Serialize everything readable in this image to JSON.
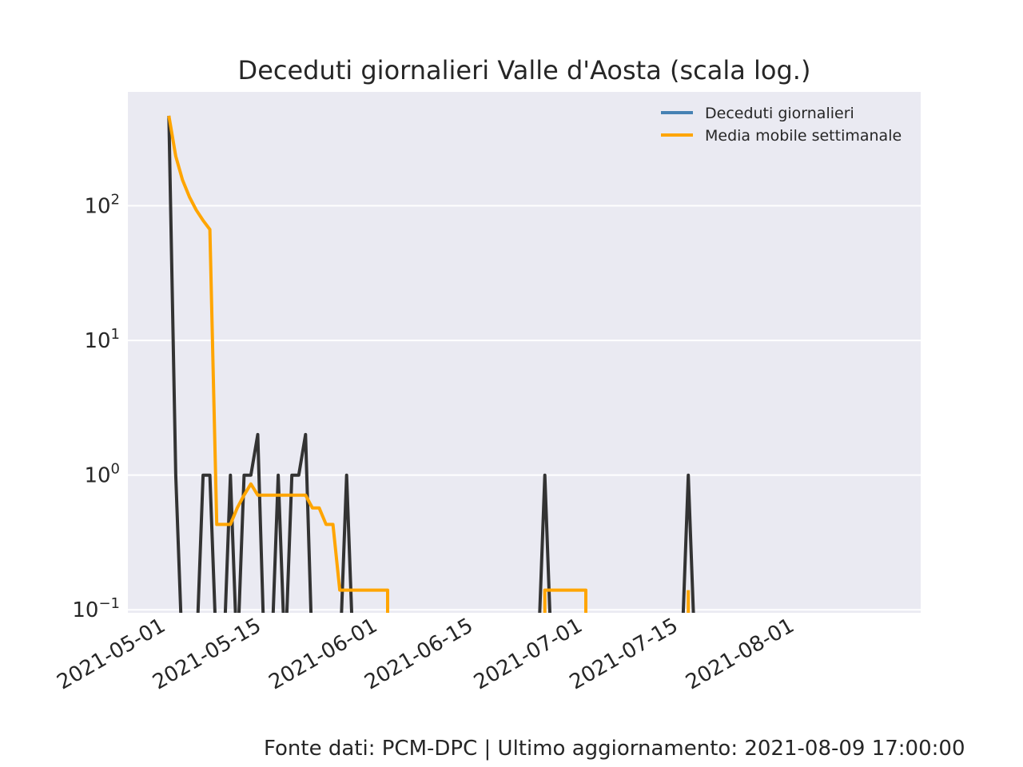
{
  "chart_data": {
    "type": "line",
    "title": "Deceduti giornalieri Valle d'Aosta (scala log.)",
    "xlabel": "",
    "ylabel": "",
    "y_scale": "log",
    "ylim": [
      0.095,
      700
    ],
    "xlim": [
      "2021-04-26",
      "2021-08-20"
    ],
    "grid": true,
    "legend_position": "top-right",
    "x_ticks": [
      "2021-05-01",
      "2021-05-15",
      "2021-06-01",
      "2021-06-15",
      "2021-07-01",
      "2021-07-15",
      "2021-08-01"
    ],
    "y_ticks": [
      {
        "value": 0.1,
        "base": "10",
        "exp": "−1"
      },
      {
        "value": 1,
        "base": "10",
        "exp": "0"
      },
      {
        "value": 10,
        "base": "10",
        "exp": "1"
      },
      {
        "value": 100,
        "base": "10",
        "exp": "2"
      }
    ],
    "series": [
      {
        "name": "Deceduti giornalieri",
        "color": "#4682b4",
        "draw_color": "#333333",
        "points": [
          [
            "2021-05-02",
            465
          ],
          [
            "2021-05-03",
            1
          ],
          [
            "2021-05-04",
            0
          ],
          [
            "2021-05-05",
            0
          ],
          [
            "2021-05-06",
            0
          ],
          [
            "2021-05-07",
            1
          ],
          [
            "2021-05-08",
            1
          ],
          [
            "2021-05-09",
            0
          ],
          [
            "2021-05-10",
            0
          ],
          [
            "2021-05-11",
            1
          ],
          [
            "2021-05-12",
            0
          ],
          [
            "2021-05-13",
            1
          ],
          [
            "2021-05-14",
            1
          ],
          [
            "2021-05-15",
            2
          ],
          [
            "2021-05-16",
            0
          ],
          [
            "2021-05-17",
            0
          ],
          [
            "2021-05-18",
            1
          ],
          [
            "2021-05-19",
            0
          ],
          [
            "2021-05-20",
            1
          ],
          [
            "2021-05-21",
            1
          ],
          [
            "2021-05-22",
            2
          ],
          [
            "2021-05-23",
            0
          ],
          [
            "2021-05-27",
            0
          ],
          [
            "2021-05-28",
            1
          ],
          [
            "2021-05-29",
            0
          ],
          [
            "2021-06-25",
            0
          ],
          [
            "2021-06-26",
            1
          ],
          [
            "2021-06-27",
            0
          ],
          [
            "2021-07-16",
            0
          ],
          [
            "2021-07-17",
            1
          ],
          [
            "2021-07-18",
            0
          ]
        ]
      },
      {
        "name": "Media mobile settimanale",
        "color": "#ffa500",
        "points": [
          [
            "2021-05-02",
            465
          ],
          [
            "2021-05-03",
            233
          ],
          [
            "2021-05-04",
            155
          ],
          [
            "2021-05-05",
            116.3
          ],
          [
            "2021-05-06",
            93
          ],
          [
            "2021-05-07",
            77.7
          ],
          [
            "2021-05-08",
            66.6
          ],
          [
            "2021-05-09",
            0.43
          ],
          [
            "2021-05-10",
            0.43
          ],
          [
            "2021-05-11",
            0.43
          ],
          [
            "2021-05-12",
            0.57
          ],
          [
            "2021-05-13",
            0.71
          ],
          [
            "2021-05-14",
            0.86
          ],
          [
            "2021-05-15",
            0.71
          ],
          [
            "2021-05-16",
            0.71
          ],
          [
            "2021-05-17",
            0.71
          ],
          [
            "2021-05-18",
            0.71
          ],
          [
            "2021-05-19",
            0.71
          ],
          [
            "2021-05-20",
            0.71
          ],
          [
            "2021-05-21",
            0.71
          ],
          [
            "2021-05-22",
            0.71
          ],
          [
            "2021-05-23",
            0.57
          ],
          [
            "2021-05-24",
            0.57
          ],
          [
            "2021-05-25",
            0.43
          ],
          [
            "2021-05-26",
            0.43
          ],
          [
            "2021-05-27",
            0.14
          ],
          [
            "2021-05-28",
            0.14
          ],
          [
            "2021-06-03",
            0.14
          ],
          [
            "2021-06-03",
            0.0
          ],
          [
            "2021-06-26",
            0.0
          ],
          [
            "2021-06-26",
            0.14
          ],
          [
            "2021-07-02",
            0.14
          ],
          [
            "2021-07-02",
            0.0
          ],
          [
            "2021-07-17",
            0.0
          ],
          [
            "2021-07-17",
            0.14
          ]
        ]
      }
    ]
  },
  "footer": "Fonte dati: PCM-DPC | Ultimo aggiornamento: 2021-08-09 17:00:00"
}
